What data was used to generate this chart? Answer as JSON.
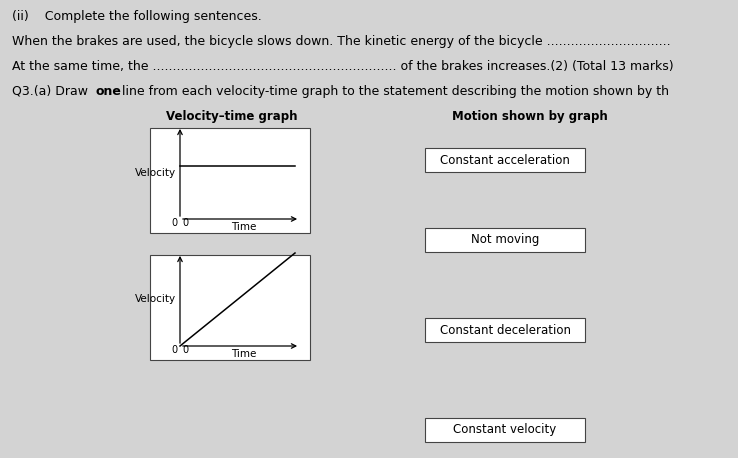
{
  "background_color": "#d3d3d3",
  "text_color": "#000000",
  "line1": "(ii)    Complete the following sentences.",
  "line2": "When the brakes are used, the bicycle slows down. The kinetic energy of the bicycle ...............................",
  "line3": "At the same time, the ............................................................. of the brakes increases.(2) (Total 13 marks)",
  "line4_prefix": "Q3.(a) Draw ",
  "line4_bold": "one",
  "line4_suffix": " line from each velocity-time graph to the statement describing the motion shown by th",
  "col_left_label": "Velocity–time graph",
  "col_right_label": "Motion shown by graph",
  "graph1_ylabel": "Velocity",
  "graph1_xlabel": "Time",
  "graph2_ylabel": "Velocity",
  "graph2_xlabel": "Time",
  "motion_labels": [
    "Constant acceleration",
    "Not moving",
    "Constant deceleration",
    "Constant velocity"
  ],
  "box_color": "#ffffff",
  "graph_bg": "#ffffff"
}
